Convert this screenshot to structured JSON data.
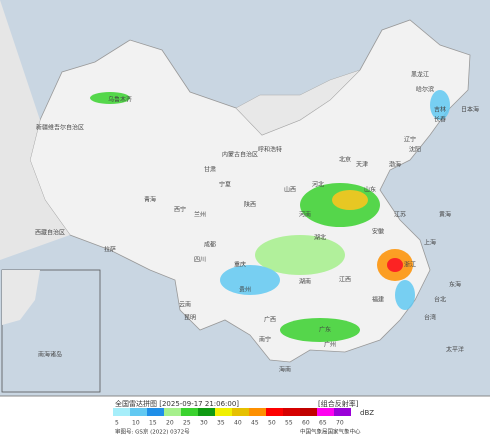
{
  "legend": {
    "title": "全国雷达拼图 [2025-09-17 21:06:00]",
    "product": "[组合反射率]",
    "unit": "dBZ",
    "ticks": [
      5,
      10,
      15,
      20,
      25,
      30,
      35,
      40,
      45,
      50,
      55,
      60,
      65,
      70
    ],
    "colors": [
      "#a6eefa",
      "#62c9f2",
      "#1f8fe8",
      "#a6f08c",
      "#3ad22e",
      "#0f9a12",
      "#f0f000",
      "#e6c000",
      "#fe9000",
      "#fe0000",
      "#d60000",
      "#c00000",
      "#fe00f0",
      "#9a00d8"
    ]
  },
  "footer": {
    "approval": "审图号: GS京 (2022) 0372号",
    "source": "中国气象局国家气象中心"
  },
  "map": {
    "labels": [
      "新疆维吾尔自治区",
      "西藏自治区",
      "青海",
      "甘肃",
      "内蒙古自治区",
      "黑龙江",
      "吉林",
      "辽宁",
      "北京",
      "天津",
      "河北",
      "山西",
      "陕西",
      "宁夏",
      "河南",
      "山东",
      "江苏",
      "安徽",
      "湖北",
      "四川",
      "重庆",
      "湖南",
      "江西",
      "浙江",
      "上海",
      "福建",
      "台湾",
      "广东",
      "广西",
      "贵州",
      "云南",
      "海南",
      "东海",
      "黄海",
      "渤海",
      "日本海",
      "太平洋",
      "乌鲁木齐",
      "拉萨",
      "西宁",
      "兰州",
      "呼和浩特",
      "哈尔滨",
      "长春",
      "沈阳",
      "成都",
      "昆明",
      "南宁",
      "广州",
      "台北",
      "南海诸岛"
    ]
  }
}
